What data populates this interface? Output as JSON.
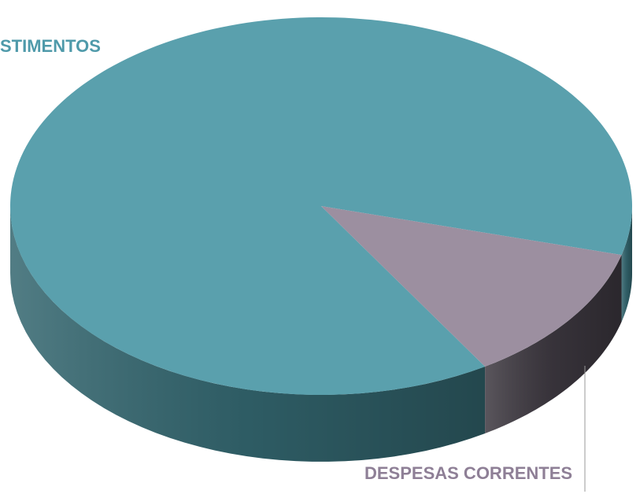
{
  "chart_data": {
    "type": "pie",
    "categories": [
      "STIMENTOS",
      "DESPESAS CORRENTES"
    ],
    "values": [
      88,
      12
    ],
    "colors": [
      "#5aa0ad",
      "#9c8fa0"
    ],
    "side_colors": [
      "#33666f",
      "#3d3840"
    ],
    "label_colors": [
      "#4f9aaa",
      "#8e7f96"
    ]
  }
}
